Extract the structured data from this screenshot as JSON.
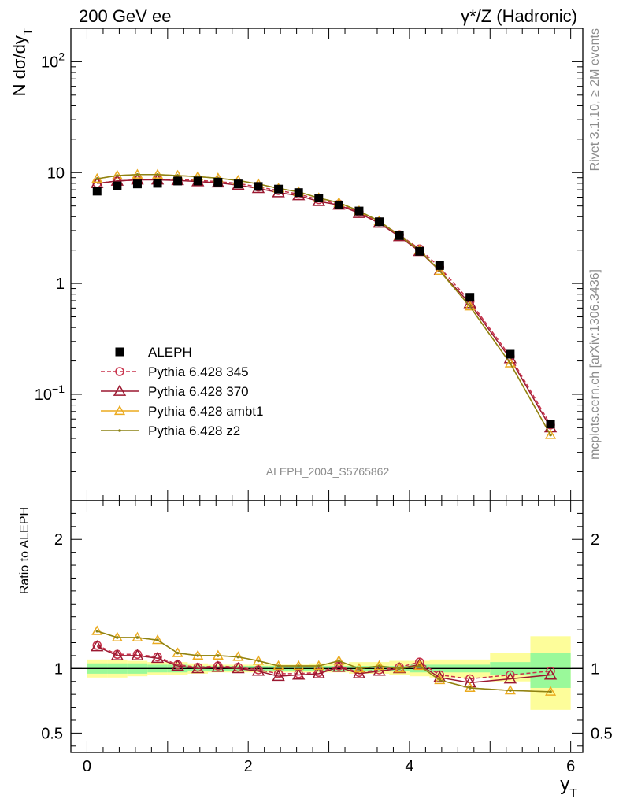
{
  "header": {
    "left": "200 GeV ee",
    "right": "γ*/Z (Hadronic)"
  },
  "side_labels": {
    "rivet": "Rivet 3.1.10, ≥ 2M events",
    "mcplots": "mcplots.cern.ch [arXiv:1306.3436]"
  },
  "watermark": "ALEPH_2004_S5765862",
  "chart_data": [
    {
      "type": "scatter",
      "panel": "main",
      "ylabel": "N dσ/dy_T",
      "yscale": "log",
      "ylim": [
        0.011,
        200
      ],
      "xlim": [
        -0.2,
        6.15
      ],
      "yticks": [
        {
          "value": 100,
          "base": "10",
          "exp": "2"
        },
        {
          "value": 10,
          "label": "10"
        },
        {
          "value": 1,
          "label": "1"
        },
        {
          "value": 0.1,
          "base": "10",
          "exp": "−1"
        }
      ],
      "x": [
        0.125,
        0.375,
        0.625,
        0.875,
        1.125,
        1.375,
        1.625,
        1.875,
        2.125,
        2.375,
        2.625,
        2.875,
        3.125,
        3.375,
        3.625,
        3.875,
        4.125,
        4.375,
        4.75,
        5.25,
        5.75
      ],
      "legend_placement": "lower-left",
      "series": [
        {
          "name": "ALEPH",
          "color": "#000000",
          "marker": "square",
          "line": "none",
          "values": [
            6.8,
            7.6,
            7.9,
            8.0,
            8.4,
            8.4,
            8.2,
            7.9,
            7.5,
            7.1,
            6.6,
            5.9,
            5.1,
            4.5,
            3.6,
            2.7,
            1.95,
            1.45,
            0.75,
            0.23,
            0.054
          ]
        },
        {
          "name": "Pythia 6.428 345",
          "color": "#c8324b",
          "marker": "circle-open",
          "line": "dashed",
          "values": [
            8.0,
            8.4,
            8.6,
            8.7,
            8.7,
            8.5,
            8.3,
            8.0,
            7.4,
            6.9,
            6.4,
            5.7,
            5.2,
            4.4,
            3.6,
            2.75,
            2.05,
            1.4,
            0.69,
            0.22,
            0.053
          ]
        },
        {
          "name": "Pythia 6.428 370",
          "color": "#9b1830",
          "marker": "triangle-open",
          "line": "solid",
          "values": [
            8.0,
            8.4,
            8.6,
            8.6,
            8.5,
            8.3,
            8.1,
            7.7,
            7.2,
            6.6,
            6.2,
            5.5,
            5.1,
            4.3,
            3.5,
            2.65,
            1.95,
            1.3,
            0.66,
            0.21,
            0.05
          ]
        },
        {
          "name": "Pythia 6.428 ambt1",
          "color": "#ebaa1e",
          "marker": "triangle-open",
          "line": "solid",
          "values": [
            8.8,
            9.4,
            9.6,
            9.6,
            9.4,
            9.2,
            8.9,
            8.5,
            7.9,
            7.2,
            6.7,
            5.9,
            5.35,
            4.5,
            3.65,
            2.7,
            2.0,
            1.3,
            0.62,
            0.19,
            0.043
          ]
        },
        {
          "name": "Pythia 6.428 z2",
          "color": "#8c8214",
          "marker": "dot",
          "line": "solid",
          "values": [
            8.8,
            9.4,
            9.6,
            9.6,
            9.4,
            9.2,
            8.9,
            8.5,
            7.9,
            7.2,
            6.7,
            5.9,
            5.35,
            4.5,
            3.65,
            2.7,
            2.0,
            1.3,
            0.62,
            0.19,
            0.043
          ]
        }
      ]
    },
    {
      "type": "line",
      "panel": "ratio",
      "ylabel": "Ratio to ALEPH",
      "xlabel": "y_T",
      "ylim": [
        0.35,
        2.3
      ],
      "xlim": [
        -0.2,
        6.15
      ],
      "yticks": [
        {
          "value": 2,
          "label": "2"
        },
        {
          "value": 1,
          "label": "1"
        },
        {
          "value": 0.5,
          "label": "0.5"
        }
      ],
      "xticks": [
        {
          "value": 0,
          "label": "0"
        },
        {
          "value": 2,
          "label": "2"
        },
        {
          "value": 4,
          "label": "4"
        },
        {
          "value": 6,
          "label": "6"
        }
      ],
      "bands": {
        "edges": [
          0,
          0.25,
          0.5,
          0.75,
          1.0,
          1.25,
          1.5,
          1.75,
          2.0,
          2.25,
          2.5,
          2.75,
          3.0,
          3.25,
          3.5,
          3.75,
          4.0,
          4.25,
          4.5,
          5.0,
          5.5,
          6.0
        ],
        "stat_low": [
          0.96,
          0.96,
          0.96,
          0.97,
          0.97,
          0.98,
          0.98,
          0.98,
          0.98,
          0.98,
          0.98,
          0.98,
          0.98,
          0.98,
          0.98,
          0.98,
          0.97,
          0.97,
          0.97,
          0.95,
          0.85
        ],
        "stat_high": [
          1.04,
          1.04,
          1.04,
          1.03,
          1.03,
          1.02,
          1.02,
          1.02,
          1.02,
          1.02,
          1.02,
          1.02,
          1.02,
          1.02,
          1.02,
          1.02,
          1.03,
          1.03,
          1.03,
          1.05,
          1.12
        ],
        "total_low": [
          0.93,
          0.93,
          0.94,
          0.95,
          0.95,
          0.96,
          0.97,
          0.97,
          0.97,
          0.97,
          0.97,
          0.97,
          0.97,
          0.96,
          0.96,
          0.95,
          0.94,
          0.93,
          0.93,
          0.9,
          0.68
        ],
        "total_high": [
          1.07,
          1.07,
          1.06,
          1.05,
          1.05,
          1.04,
          1.03,
          1.03,
          1.03,
          1.03,
          1.03,
          1.04,
          1.04,
          1.05,
          1.05,
          1.06,
          1.06,
          1.07,
          1.07,
          1.12,
          1.25
        ],
        "stat_color": "#9af99a",
        "total_color": "#fdfd9a"
      },
      "series": [
        {
          "name": "Pythia 6.428 345",
          "color": "#c8324b",
          "values": [
            1.18,
            1.11,
            1.11,
            1.09,
            1.03,
            1.01,
            1.02,
            1.01,
            0.99,
            0.96,
            0.96,
            0.97,
            1.02,
            0.97,
            0.99,
            1.01,
            1.05,
            0.95,
            0.92,
            0.95,
            0.98
          ]
        },
        {
          "name": "Pythia 6.428 370",
          "color": "#9b1830",
          "values": [
            1.17,
            1.1,
            1.1,
            1.08,
            1.02,
            1.0,
            1.01,
            1.0,
            0.98,
            0.94,
            0.95,
            0.96,
            1.01,
            0.96,
            0.98,
            1.0,
            1.03,
            0.93,
            0.89,
            0.92,
            0.95
          ]
        },
        {
          "name": "Pythia 6.428 ambt1",
          "color": "#ebaa1e",
          "values": [
            1.29,
            1.24,
            1.24,
            1.22,
            1.12,
            1.1,
            1.1,
            1.09,
            1.06,
            1.02,
            1.02,
            1.02,
            1.06,
            1.0,
            1.02,
            1.0,
            1.02,
            0.91,
            0.85,
            0.83,
            0.82
          ]
        },
        {
          "name": "Pythia 6.428 z2",
          "color": "#8c8214",
          "values": [
            1.29,
            1.24,
            1.24,
            1.22,
            1.12,
            1.1,
            1.1,
            1.09,
            1.06,
            1.02,
            1.02,
            1.02,
            1.06,
            1.0,
            1.02,
            1.0,
            1.02,
            0.91,
            0.85,
            0.83,
            0.82
          ]
        }
      ]
    }
  ]
}
